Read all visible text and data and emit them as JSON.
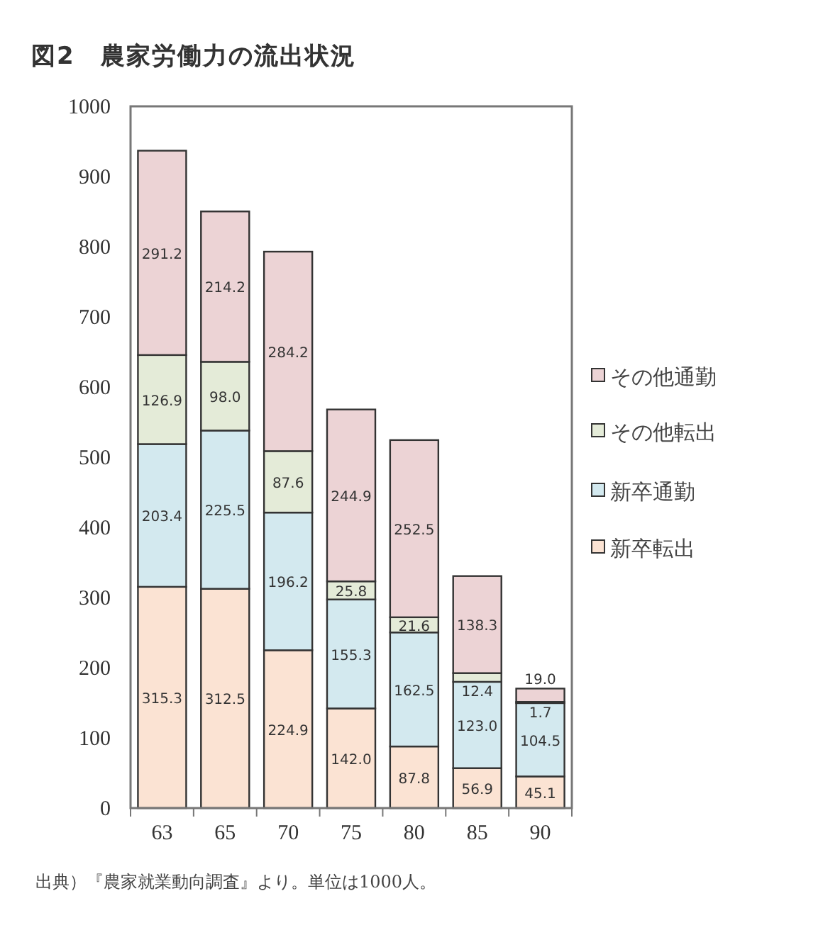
{
  "chart_data": {
    "type": "bar",
    "stacked": true,
    "title": "図2　農家労働力の流出状況",
    "categories": [
      "63",
      "65",
      "70",
      "75",
      "80",
      "85",
      "90"
    ],
    "series": [
      {
        "name": "新卒転出",
        "color": "#fbe3d3",
        "values": [
          315.3,
          312.5,
          224.9,
          142.0,
          87.8,
          56.9,
          45.1
        ],
        "value_labels": [
          "315.3",
          "312.5",
          "224.9",
          "142.0",
          "87.8",
          "56.9",
          "45.1"
        ]
      },
      {
        "name": "新卒通勤",
        "color": "#d3e9ef",
        "values": [
          203.4,
          225.5,
          196.2,
          155.3,
          162.5,
          123.0,
          104.5
        ],
        "value_labels": [
          "203.4",
          "225.5",
          "196.2",
          "155.3",
          "162.5",
          "123.0",
          "104.5"
        ]
      },
      {
        "name": "その他転出",
        "color": "#e4ebd8",
        "values": [
          126.9,
          98.0,
          87.6,
          25.8,
          21.6,
          12.4,
          1.7
        ],
        "value_labels": [
          "126.9",
          "98.0",
          "87.6",
          "25.8",
          "21.6",
          "12.4",
          "1.7"
        ]
      },
      {
        "name": "その他通勤",
        "color": "#ecd3d5",
        "values": [
          291.2,
          214.2,
          284.2,
          244.9,
          252.5,
          138.3,
          19.0
        ],
        "value_labels": [
          "291.2",
          "214.2",
          "284.2",
          "244.9",
          "252.5",
          "138.3",
          "19.0"
        ]
      }
    ],
    "ylim": [
      0,
      1000
    ],
    "yticks": [
      0,
      100,
      200,
      300,
      400,
      500,
      600,
      700,
      800,
      900,
      1000
    ],
    "legend": "right",
    "grid": false,
    "annotations": [
      "出典）『農家就業動向調査』より。単位は1000人。"
    ]
  }
}
